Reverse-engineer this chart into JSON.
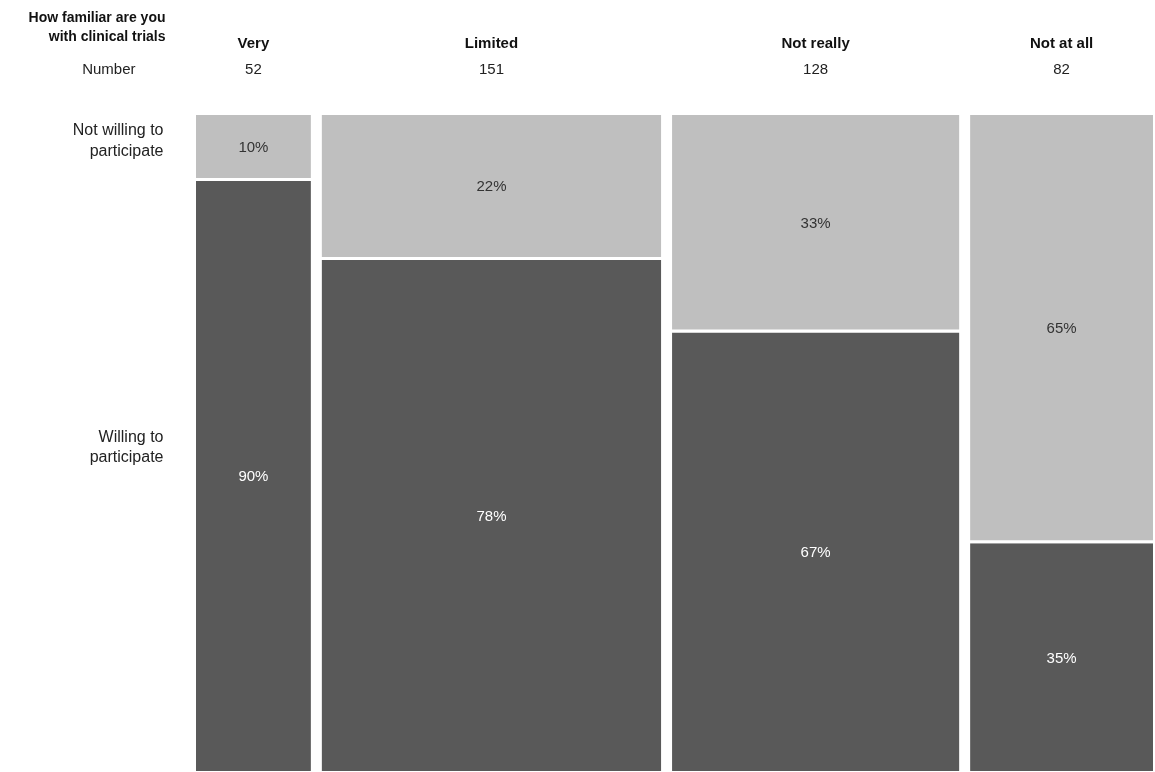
{
  "chart_data": {
    "type": "bar",
    "stacked": true,
    "title": "How familiar are you\nwith clinical trials",
    "categories": [
      "Very",
      "Limited",
      "Not really",
      "Not at all"
    ],
    "series": [
      {
        "name": "Willing to\nparticipate",
        "color": "#595959",
        "values": [
          90,
          78,
          67,
          35
        ],
        "value_labels": [
          "90%",
          "78%",
          "67%",
          "35%"
        ]
      },
      {
        "name": "Not willing to\nparticipate",
        "color": "#bfbfbf",
        "values": [
          10,
          22,
          33,
          65
        ],
        "value_labels": [
          "10%",
          "22%",
          "33%",
          "65%"
        ]
      }
    ],
    "annotations": [
      "Number",
      "52",
      "151",
      "128",
      "82"
    ],
    "grid": false
  }
}
